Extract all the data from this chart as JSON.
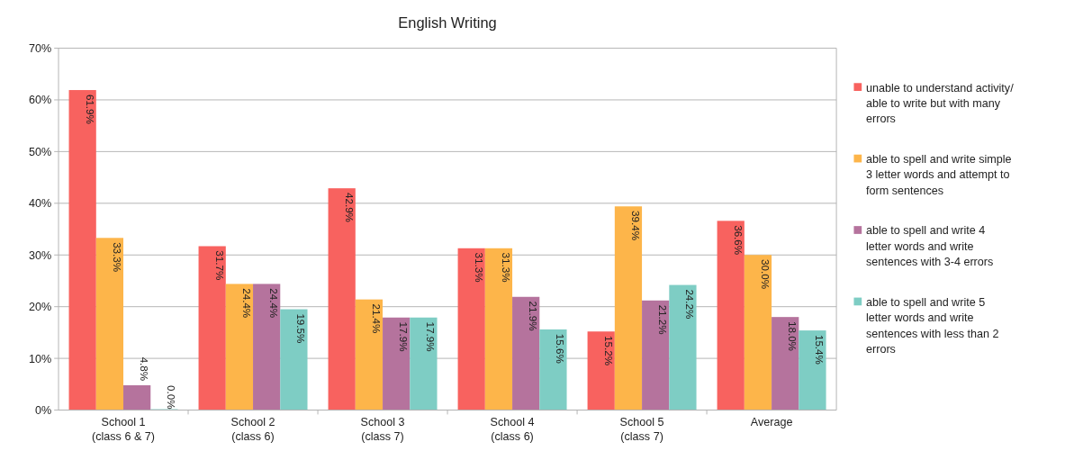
{
  "chart_data": {
    "type": "bar",
    "title": "English Writing",
    "categories": [
      "School 1\n(class 6 & 7)",
      "School 2\n(class 6)",
      "School 3\n(class 7)",
      "School 4\n(class 6)",
      "School 5\n(class 7)",
      "Average"
    ],
    "series": [
      {
        "name": "unable to understand activity/ able to write but with many errors",
        "color": "#f8625f",
        "values": [
          61.9,
          31.7,
          42.9,
          31.3,
          15.2,
          36.6
        ],
        "value_labels": [
          "61.9%",
          "31.7%",
          "42.9%",
          "31.3%",
          "15.2%",
          "36.6%"
        ]
      },
      {
        "name": "able to spell and write simple 3 letter words and attempt to form sentences",
        "color": "#fdb54a",
        "values": [
          33.3,
          24.4,
          21.4,
          31.3,
          39.4,
          30.0
        ],
        "value_labels": [
          "33.3%",
          "24.4%",
          "21.4%",
          "31.3%",
          "39.4%",
          "30.0%"
        ]
      },
      {
        "name": "able to spell and write 4 letter words and write sentences with 3-4 errors",
        "color": "#b5739d",
        "values": [
          4.8,
          24.4,
          17.9,
          21.9,
          21.2,
          18.0
        ],
        "value_labels": [
          "4.8%",
          "24.4%",
          "17.9%",
          "21.9%",
          "21.2%",
          "18.0%"
        ]
      },
      {
        "name": "able to spell and write 5 letter words and write sentences with less than 2 errors",
        "color": "#7ecdc4",
        "values": [
          0.0,
          19.5,
          17.9,
          15.6,
          24.2,
          15.4
        ],
        "value_labels": [
          "0.0%",
          "19.5%",
          "17.9%",
          "15.6%",
          "24.2%",
          "15.4%"
        ]
      }
    ],
    "ylim": [
      0,
      70
    ],
    "yticks": [
      {
        "value": 0,
        "label": "0%"
      },
      {
        "value": 10,
        "label": "10%"
      },
      {
        "value": 20,
        "label": "20%"
      },
      {
        "value": 30,
        "label": "30%"
      },
      {
        "value": 40,
        "label": "40%"
      },
      {
        "value": 50,
        "label": "50%"
      },
      {
        "value": 60,
        "label": "60%"
      },
      {
        "value": 70,
        "label": "70%"
      }
    ],
    "grid": "y",
    "legend": "right"
  }
}
